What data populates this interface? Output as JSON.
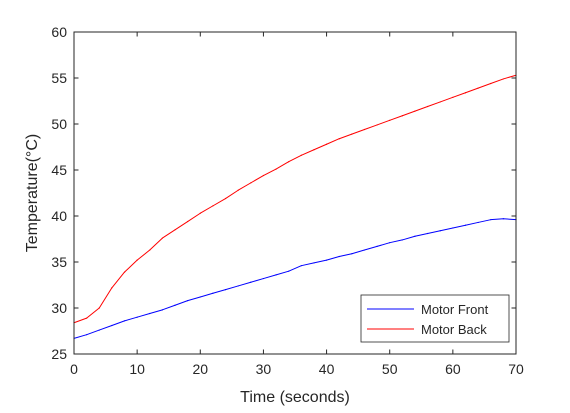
{
  "chart_data": {
    "type": "line",
    "title": "",
    "xlabel": "Time (seconds)",
    "ylabel": "Temperature(°C)",
    "xlim": [
      0,
      70
    ],
    "ylim": [
      25,
      60
    ],
    "xticks": [
      "0",
      "10",
      "20",
      "30",
      "40",
      "50",
      "60",
      "70"
    ],
    "yticks": [
      "25",
      "30",
      "35",
      "40",
      "45",
      "50",
      "55",
      "60"
    ],
    "grid": false,
    "legend_position": "bottom-right",
    "x": [
      0,
      2,
      4,
      6,
      8,
      10,
      12,
      14,
      16,
      18,
      20,
      22,
      24,
      26,
      28,
      30,
      32,
      34,
      36,
      38,
      40,
      42,
      44,
      46,
      48,
      50,
      52,
      54,
      56,
      58,
      60,
      62,
      64,
      66,
      68,
      70
    ],
    "series": [
      {
        "name": "Motor Front",
        "color": "#0000ff",
        "values": [
          26.7,
          27.1,
          27.6,
          28.1,
          28.6,
          29.0,
          29.4,
          29.8,
          30.3,
          30.8,
          31.2,
          31.6,
          32.0,
          32.4,
          32.8,
          33.2,
          33.6,
          34.0,
          34.6,
          34.9,
          35.2,
          35.6,
          35.9,
          36.3,
          36.7,
          37.1,
          37.4,
          37.8,
          38.1,
          38.4,
          38.7,
          39.0,
          39.3,
          39.6,
          39.7,
          39.6
        ]
      },
      {
        "name": "Motor Back",
        "color": "#ff0000",
        "values": [
          28.4,
          28.9,
          30.0,
          32.2,
          33.9,
          35.2,
          36.3,
          37.6,
          38.5,
          39.4,
          40.3,
          41.1,
          41.9,
          42.8,
          43.6,
          44.4,
          45.1,
          45.9,
          46.6,
          47.2,
          47.8,
          48.4,
          48.9,
          49.4,
          49.9,
          50.4,
          50.9,
          51.4,
          51.9,
          52.4,
          52.9,
          53.4,
          53.9,
          54.4,
          54.9,
          55.3
        ]
      }
    ]
  }
}
